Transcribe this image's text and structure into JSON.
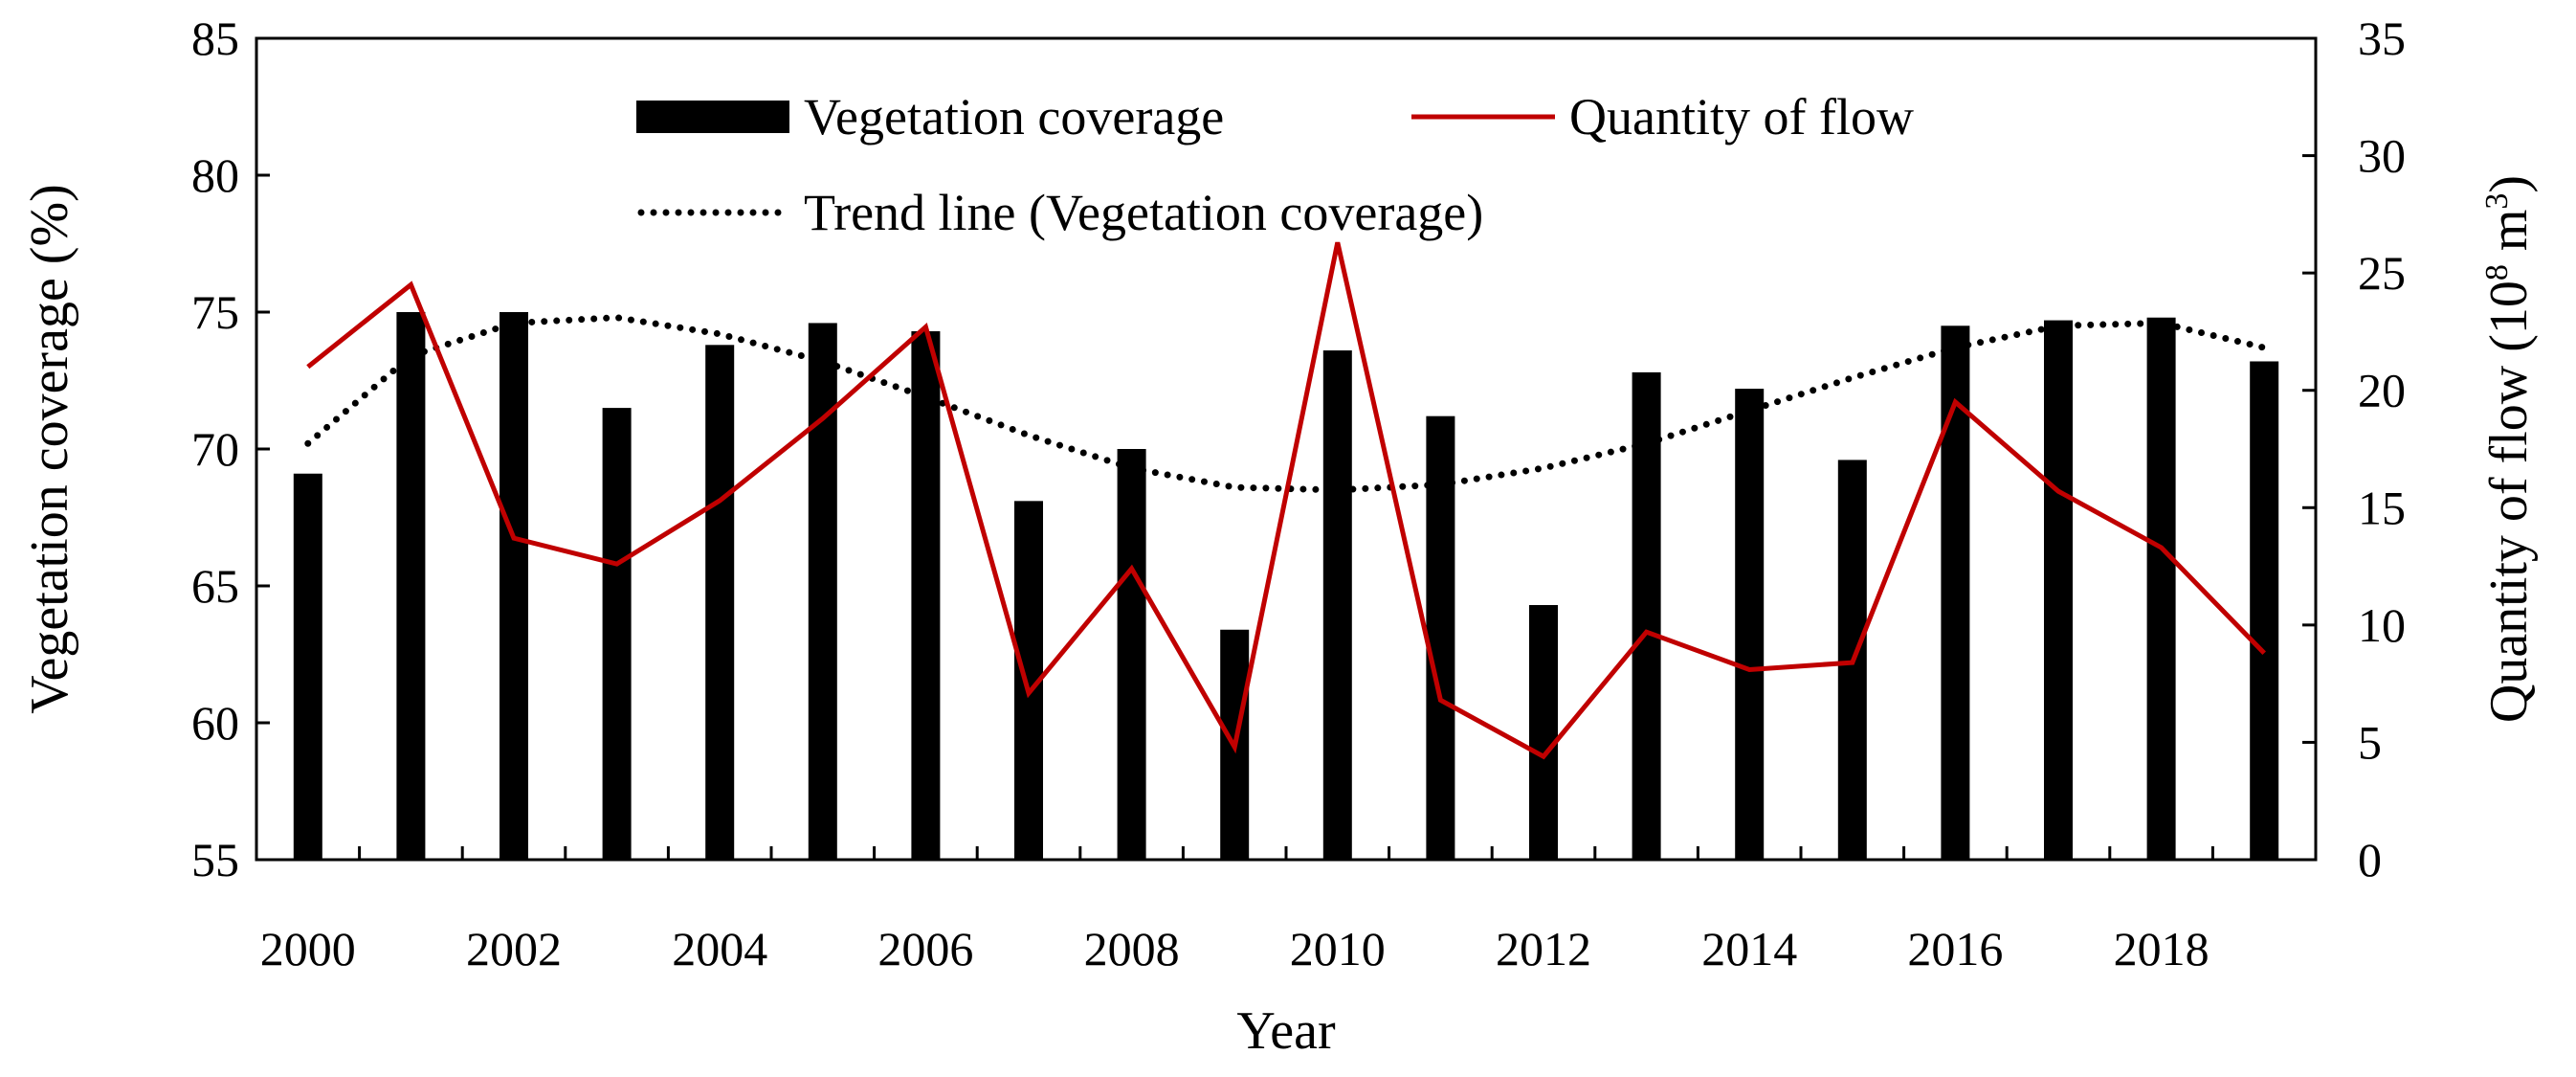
{
  "chart_data": {
    "type": "bar",
    "title": "",
    "xlabel": "Year",
    "ylabel_left": "Vegetation coverage (%)",
    "ylabel_right": {
      "prefix": "Quantity of flow (10",
      "sup": "8",
      "mid": " m",
      "sup2": "3",
      "suffix": ")"
    },
    "x": [
      2000,
      2001,
      2002,
      2003,
      2004,
      2005,
      2006,
      2007,
      2008,
      2009,
      2010,
      2011,
      2012,
      2013,
      2014,
      2015,
      2016,
      2017,
      2018,
      2019
    ],
    "x_tick_labels": [
      "2000",
      "2002",
      "2004",
      "2006",
      "2008",
      "2010",
      "2012",
      "2014",
      "2016",
      "2018"
    ],
    "ylim_left": [
      55,
      85
    ],
    "y_ticks_left": [
      "55",
      "60",
      "65",
      "70",
      "75",
      "80",
      "85"
    ],
    "ylim_right": [
      0,
      35
    ],
    "y_ticks_right": [
      "0",
      "5",
      "10",
      "15",
      "20",
      "25",
      "30",
      "35"
    ],
    "series": [
      {
        "name": "Vegetation coverage",
        "kind": "bar",
        "axis": "left",
        "color": "#000000",
        "values": [
          69.1,
          75.0,
          75.0,
          71.5,
          73.8,
          74.6,
          74.3,
          68.1,
          70.0,
          63.4,
          73.6,
          71.2,
          64.3,
          72.8,
          72.2,
          69.6,
          74.5,
          74.7,
          74.8,
          73.2
        ]
      },
      {
        "name": "Quantity of flow",
        "kind": "line",
        "axis": "right",
        "color": "#c00000",
        "values": [
          21.0,
          24.5,
          13.7,
          12.6,
          15.3,
          18.8,
          22.7,
          7.1,
          12.4,
          4.8,
          26.3,
          6.8,
          4.4,
          9.7,
          8.1,
          8.4,
          19.5,
          15.7,
          13.3,
          8.8
        ]
      },
      {
        "name": "Trend line (Vegetation coverage)",
        "kind": "dotted-line",
        "axis": "left",
        "color": "#000000",
        "values": [
          70.2,
          73.4,
          74.6,
          74.8,
          74.2,
          73.2,
          71.9,
          70.5,
          69.3,
          68.6,
          68.5,
          68.7,
          69.3,
          70.2,
          71.4,
          72.6,
          73.7,
          74.5,
          74.6,
          73.7
        ]
      }
    ],
    "legend": {
      "placement": "top-center",
      "entries": [
        "Vegetation coverage",
        "Quantity of flow",
        "Trend line (Vegetation coverage)"
      ]
    },
    "grid": false
  }
}
